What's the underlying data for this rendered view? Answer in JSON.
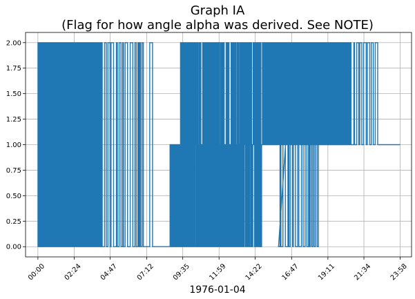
{
  "chart_data": {
    "type": "line",
    "title": "Graph IA",
    "subtitle": "(Flag for how angle alpha was derived. See NOTE)",
    "xlabel": "1976-01-04",
    "ylabel": "",
    "x_range": [
      "00:00",
      "23:58"
    ],
    "xlim": [
      "-00:49",
      "24:43"
    ],
    "ylim": [
      -0.1,
      2.1
    ],
    "x_ticks": [
      "00:00",
      "02:24",
      "04:47",
      "07:12",
      "09:35",
      "11:59",
      "14:22",
      "16:47",
      "19:11",
      "21:34",
      "23:58"
    ],
    "y_ticks": [
      "0.00",
      "0.25",
      "0.50",
      "0.75",
      "1.00",
      "1.25",
      "1.50",
      "1.75",
      "2.00"
    ],
    "grid": true,
    "color": "#1f77b4",
    "series": [
      {
        "name": "",
        "segments": [
          {
            "start": "00:00",
            "end": "03:57",
            "values": [
              0,
              2
            ],
            "density": "dense"
          },
          {
            "start": "03:57",
            "end": "04:16",
            "values": [
              0,
              2
            ],
            "density": "medium"
          },
          {
            "start": "04:16",
            "end": "07:02",
            "values": [
              0,
              2
            ],
            "density": "sparse"
          },
          {
            "start": "07:02",
            "end": "07:46",
            "values": [
              0,
              2
            ],
            "density": "rare"
          },
          {
            "start": "08:42",
            "end": "09:25",
            "values": [
              0,
              1
            ],
            "density": "medium"
          },
          {
            "start": "09:25",
            "end": "14:49",
            "values": [
              0,
              1,
              2
            ],
            "density": "dense"
          },
          {
            "start": "14:49",
            "end": "16:23",
            "values": [
              1,
              2
            ],
            "density": "medium"
          },
          {
            "start": "15:55",
            "end": "18:37",
            "values": [
              0,
              1
            ],
            "density": "sparse"
          },
          {
            "start": "16:23",
            "end": "20:43",
            "values": [
              1,
              2
            ],
            "density": "medium"
          },
          {
            "start": "20:43",
            "end": "22:30",
            "values": [
              1,
              2
            ],
            "density": "sparse"
          },
          {
            "start": "22:30",
            "end": "23:58",
            "values": [
              1
            ],
            "density": "flat"
          }
        ]
      }
    ]
  }
}
